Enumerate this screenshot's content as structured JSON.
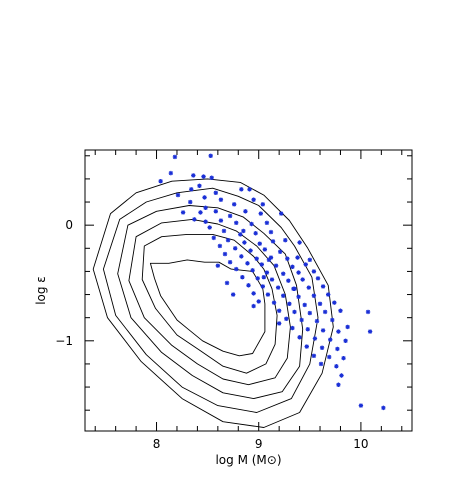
{
  "chart_data": {
    "type": "scatter",
    "title": "",
    "xlabel": "log M (M⊙)",
    "ylabel": "log ε",
    "xlim": [
      7.3,
      10.5
    ],
    "ylim": [
      -1.78,
      0.65
    ],
    "x_ticks": [
      {
        "value": 8,
        "label": "8"
      },
      {
        "value": 9,
        "label": "9"
      },
      {
        "value": 10,
        "label": "10"
      }
    ],
    "y_ticks": [
      {
        "value": 0,
        "label": "0"
      },
      {
        "value": -1,
        "label": "−1"
      }
    ],
    "grid": false,
    "colors": {
      "scatter": "#1a2fd6",
      "contour": "#000000",
      "axes": "#000000"
    },
    "contours": [
      {
        "level": 1,
        "points": [
          [
            7.94,
            -0.33
          ],
          [
            8.12,
            -0.33
          ],
          [
            8.3,
            -0.3
          ],
          [
            8.47,
            -0.32
          ],
          [
            8.61,
            -0.32
          ],
          [
            8.73,
            -0.38
          ],
          [
            8.94,
            -0.4
          ],
          [
            9.04,
            -0.55
          ],
          [
            9.06,
            -0.68
          ],
          [
            9.06,
            -0.92
          ],
          [
            8.94,
            -1.11
          ],
          [
            8.81,
            -1.13
          ],
          [
            8.65,
            -1.09
          ],
          [
            8.45,
            -1.0
          ],
          [
            8.31,
            -0.9
          ],
          [
            8.2,
            -0.82
          ],
          [
            8.04,
            -0.61
          ],
          [
            7.98,
            -0.46
          ]
        ]
      },
      {
        "level": 2,
        "points": [
          [
            7.88,
            -0.18
          ],
          [
            8.05,
            -0.1
          ],
          [
            8.3,
            -0.08
          ],
          [
            8.55,
            -0.08
          ],
          [
            8.76,
            -0.13
          ],
          [
            8.95,
            -0.27
          ],
          [
            9.05,
            -0.38
          ],
          [
            9.13,
            -0.55
          ],
          [
            9.18,
            -0.78
          ],
          [
            9.16,
            -1.03
          ],
          [
            9.07,
            -1.2
          ],
          [
            8.88,
            -1.28
          ],
          [
            8.65,
            -1.22
          ],
          [
            8.42,
            -1.08
          ],
          [
            8.2,
            -0.95
          ],
          [
            7.99,
            -0.72
          ],
          [
            7.86,
            -0.47
          ]
        ]
      },
      {
        "level": 3,
        "points": [
          [
            7.8,
            -0.1
          ],
          [
            8.05,
            0.02
          ],
          [
            8.35,
            0.05
          ],
          [
            8.6,
            0.01
          ],
          [
            8.78,
            -0.05
          ],
          [
            8.98,
            -0.18
          ],
          [
            9.15,
            -0.35
          ],
          [
            9.26,
            -0.6
          ],
          [
            9.31,
            -0.88
          ],
          [
            9.28,
            -1.15
          ],
          [
            9.16,
            -1.32
          ],
          [
            8.9,
            -1.38
          ],
          [
            8.65,
            -1.33
          ],
          [
            8.4,
            -1.2
          ],
          [
            8.15,
            -1.04
          ],
          [
            7.88,
            -0.8
          ],
          [
            7.73,
            -0.48
          ]
        ]
      },
      {
        "level": 4,
        "points": [
          [
            7.72,
            0.0
          ],
          [
            8.0,
            0.12
          ],
          [
            8.32,
            0.17
          ],
          [
            8.6,
            0.15
          ],
          [
            8.85,
            0.07
          ],
          [
            9.05,
            -0.07
          ],
          [
            9.26,
            -0.25
          ],
          [
            9.37,
            -0.52
          ],
          [
            9.43,
            -0.9
          ],
          [
            9.4,
            -1.22
          ],
          [
            9.23,
            -1.44
          ],
          [
            8.95,
            -1.5
          ],
          [
            8.65,
            -1.45
          ],
          [
            8.35,
            -1.3
          ],
          [
            8.05,
            -1.1
          ],
          [
            7.75,
            -0.8
          ],
          [
            7.62,
            -0.42
          ]
        ]
      },
      {
        "level": 5,
        "points": [
          [
            7.64,
            0.05
          ],
          [
            7.9,
            0.2
          ],
          [
            8.2,
            0.28
          ],
          [
            8.55,
            0.32
          ],
          [
            8.8,
            0.25
          ],
          [
            9.0,
            0.17
          ],
          [
            9.22,
            -0.02
          ],
          [
            9.35,
            -0.18
          ],
          [
            9.52,
            -0.45
          ],
          [
            9.58,
            -0.8
          ],
          [
            9.5,
            -1.2
          ],
          [
            9.32,
            -1.5
          ],
          [
            8.98,
            -1.62
          ],
          [
            8.6,
            -1.56
          ],
          [
            8.25,
            -1.4
          ],
          [
            7.9,
            -1.12
          ],
          [
            7.6,
            -0.78
          ],
          [
            7.48,
            -0.38
          ]
        ]
      },
      {
        "level": 6,
        "points": [
          [
            7.55,
            0.1
          ],
          [
            7.8,
            0.28
          ],
          [
            8.15,
            0.38
          ],
          [
            8.5,
            0.4
          ],
          [
            8.82,
            0.37
          ],
          [
            9.05,
            0.26
          ],
          [
            9.3,
            0.04
          ],
          [
            9.48,
            -0.2
          ],
          [
            9.68,
            -0.52
          ],
          [
            9.73,
            -0.88
          ],
          [
            9.62,
            -1.28
          ],
          [
            9.4,
            -1.62
          ],
          [
            9.05,
            -1.75
          ],
          [
            8.65,
            -1.7
          ],
          [
            8.25,
            -1.5
          ],
          [
            7.85,
            -1.18
          ],
          [
            7.52,
            -0.8
          ],
          [
            7.38,
            -0.38
          ]
        ]
      }
    ],
    "points": [
      [
        8.18,
        0.59
      ],
      [
        8.53,
        0.6
      ],
      [
        8.14,
        0.45
      ],
      [
        8.36,
        0.43
      ],
      [
        8.46,
        0.42
      ],
      [
        8.54,
        0.41
      ],
      [
        8.04,
        0.38
      ],
      [
        8.42,
        0.34
      ],
      [
        8.34,
        0.31
      ],
      [
        8.58,
        0.28
      ],
      [
        8.83,
        0.31
      ],
      [
        8.91,
        0.31
      ],
      [
        8.21,
        0.26
      ],
      [
        8.47,
        0.24
      ],
      [
        8.33,
        0.2
      ],
      [
        8.63,
        0.22
      ],
      [
        8.76,
        0.18
      ],
      [
        8.95,
        0.22
      ],
      [
        9.04,
        0.18
      ],
      [
        8.48,
        0.15
      ],
      [
        8.58,
        0.12
      ],
      [
        8.43,
        0.11
      ],
      [
        8.26,
        0.11
      ],
      [
        8.72,
        0.08
      ],
      [
        8.87,
        0.12
      ],
      [
        9.02,
        0.1
      ],
      [
        9.22,
        0.1
      ],
      [
        8.37,
        0.05
      ],
      [
        8.48,
        0.03
      ],
      [
        8.63,
        0.04
      ],
      [
        8.78,
        0.02
      ],
      [
        8.93,
        0.01
      ],
      [
        9.08,
        0.02
      ],
      [
        8.52,
        -0.02
      ],
      [
        8.66,
        -0.05
      ],
      [
        8.82,
        -0.08
      ],
      [
        8.97,
        -0.07
      ],
      [
        9.12,
        -0.06
      ],
      [
        8.56,
        -0.11
      ],
      [
        8.7,
        -0.13
      ],
      [
        8.86,
        -0.15
      ],
      [
        9.01,
        -0.16
      ],
      [
        9.14,
        -0.14
      ],
      [
        9.26,
        -0.13
      ],
      [
        8.62,
        -0.18
      ],
      [
        8.77,
        -0.2
      ],
      [
        8.92,
        -0.22
      ],
      [
        9.06,
        -0.21
      ],
      [
        9.21,
        -0.23
      ],
      [
        8.67,
        -0.25
      ],
      [
        8.83,
        -0.27
      ],
      [
        8.98,
        -0.29
      ],
      [
        9.12,
        -0.28
      ],
      [
        9.28,
        -0.29
      ],
      [
        9.38,
        -0.28
      ],
      [
        8.72,
        -0.32
      ],
      [
        8.89,
        -0.33
      ],
      [
        9.03,
        -0.34
      ],
      [
        9.17,
        -0.35
      ],
      [
        9.33,
        -0.36
      ],
      [
        9.46,
        -0.34
      ],
      [
        8.78,
        -0.38
      ],
      [
        8.94,
        -0.39
      ],
      [
        9.08,
        -0.41
      ],
      [
        9.24,
        -0.42
      ],
      [
        9.39,
        -0.41
      ],
      [
        9.54,
        -0.4
      ],
      [
        8.84,
        -0.45
      ],
      [
        8.99,
        -0.46
      ],
      [
        9.13,
        -0.47
      ],
      [
        9.29,
        -0.48
      ],
      [
        9.43,
        -0.47
      ],
      [
        9.58,
        -0.46
      ],
      [
        8.69,
        -0.5
      ],
      [
        8.9,
        -0.52
      ],
      [
        9.04,
        -0.53
      ],
      [
        9.19,
        -0.54
      ],
      [
        9.34,
        -0.55
      ],
      [
        9.49,
        -0.54
      ],
      [
        9.63,
        -0.53
      ],
      [
        8.95,
        -0.59
      ],
      [
        9.09,
        -0.6
      ],
      [
        9.24,
        -0.61
      ],
      [
        9.39,
        -0.62
      ],
      [
        9.54,
        -0.61
      ],
      [
        9.68,
        -0.6
      ],
      [
        9.0,
        -0.66
      ],
      [
        9.15,
        -0.67
      ],
      [
        9.3,
        -0.68
      ],
      [
        9.45,
        -0.69
      ],
      [
        9.6,
        -0.68
      ],
      [
        9.74,
        -0.67
      ],
      [
        9.2,
        -0.74
      ],
      [
        9.35,
        -0.75
      ],
      [
        9.5,
        -0.76
      ],
      [
        9.65,
        -0.75
      ],
      [
        9.8,
        -0.74
      ],
      [
        9.27,
        -0.81
      ],
      [
        9.42,
        -0.82
      ],
      [
        9.57,
        -0.83
      ],
      [
        9.72,
        -0.82
      ],
      [
        9.87,
        -0.88
      ],
      [
        9.33,
        -0.89
      ],
      [
        9.48,
        -0.9
      ],
      [
        9.63,
        -0.91
      ],
      [
        9.78,
        -0.92
      ],
      [
        9.4,
        -0.97
      ],
      [
        9.55,
        -0.98
      ],
      [
        9.7,
        -0.99
      ],
      [
        9.85,
        -1.0
      ],
      [
        9.47,
        -1.05
      ],
      [
        9.62,
        -1.06
      ],
      [
        9.77,
        -1.07
      ],
      [
        9.54,
        -1.13
      ],
      [
        9.69,
        -1.14
      ],
      [
        9.83,
        -1.15
      ],
      [
        9.61,
        -1.2
      ],
      [
        9.76,
        -1.22
      ],
      [
        9.81,
        -1.3
      ],
      [
        9.78,
        -1.38
      ],
      [
        10.07,
        -0.75
      ],
      [
        10.0,
        -1.56
      ],
      [
        10.22,
        -1.58
      ],
      [
        10.09,
        -0.92
      ],
      [
        8.85,
        -0.05
      ],
      [
        9.1,
        -0.3
      ],
      [
        9.35,
        -0.55
      ],
      [
        8.6,
        -0.35
      ],
      [
        9.2,
        -0.85
      ],
      [
        9.5,
        -0.3
      ],
      [
        8.95,
        -0.7
      ],
      [
        9.05,
        -0.45
      ],
      [
        8.75,
        -0.6
      ],
      [
        9.4,
        -0.15
      ]
    ]
  }
}
